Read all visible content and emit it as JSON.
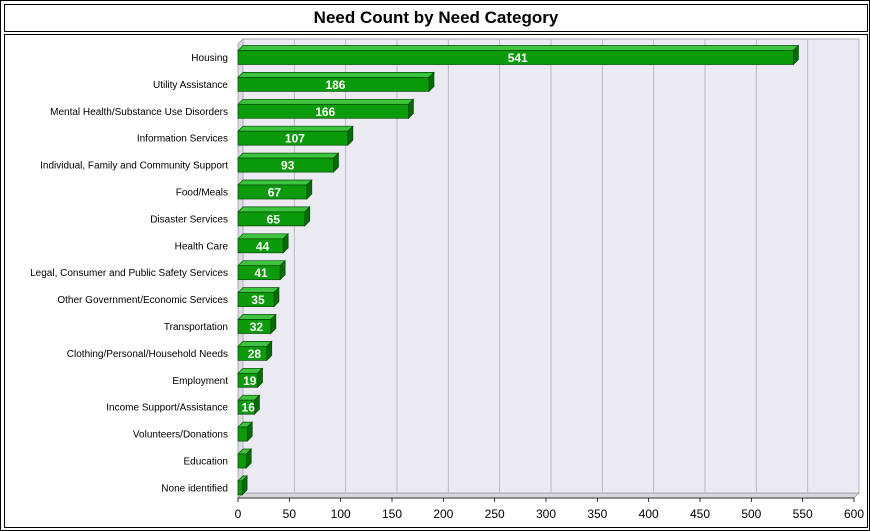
{
  "title": "Need Count by Need Category",
  "chart_data": {
    "type": "bar",
    "orientation": "horizontal",
    "title": "Need Count by Need Category",
    "xlabel": "",
    "ylabel": "",
    "xlim": [
      0,
      600
    ],
    "x_ticks": [
      0,
      50,
      100,
      150,
      200,
      250,
      300,
      350,
      400,
      450,
      500,
      550,
      600
    ],
    "grid": true,
    "bar_color": "#0a9a0a",
    "plot_background": "#ecebf3",
    "categories": [
      "Housing",
      "Utility Assistance",
      "Mental Health/Substance Use Disorders",
      "Information Services",
      "Individual, Family and Community Support",
      "Food/Meals",
      "Disaster Services",
      "Health Care",
      "Legal, Consumer and Public Safety Services",
      "Other Government/Economic Services",
      "Transportation",
      "Clothing/Personal/Household Needs",
      "Employment",
      "Income Support/Assistance",
      "Volunteers/Donations",
      "Education",
      "None identified"
    ],
    "values": [
      541,
      186,
      166,
      107,
      93,
      67,
      65,
      44,
      41,
      35,
      32,
      28,
      19,
      16,
      9,
      8,
      4
    ],
    "data_labels": [
      "541",
      "186",
      "166",
      "107",
      "93",
      "67",
      "65",
      "44",
      "41",
      "35",
      "32",
      "28",
      "19",
      "16",
      "",
      "",
      ""
    ]
  }
}
